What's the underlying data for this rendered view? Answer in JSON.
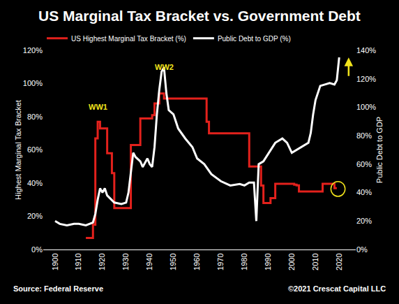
{
  "chart_data": {
    "type": "line",
    "title": "US Marginal Tax Bracket vs. Government Debt",
    "source": "Source: Federal Reserve",
    "credit": "©2021 Crescat Capital LLC",
    "ylabel": "Highest Marginal Tax Bracket",
    "y2label": "Public Debt to GDP",
    "legend": "upper left",
    "grid": false,
    "xlim": [
      1895,
      2027
    ],
    "xticks": [
      1900,
      1910,
      1920,
      1930,
      1940,
      1950,
      1960,
      1970,
      1980,
      1990,
      2000,
      2010,
      2020
    ],
    "ylim": [
      0,
      120
    ],
    "yticks": [
      {
        "value": 0,
        "label": "0%"
      },
      {
        "value": 20,
        "label": "20%"
      },
      {
        "value": 40,
        "label": "40%"
      },
      {
        "value": 60,
        "label": "60%"
      },
      {
        "value": 80,
        "label": "80%"
      },
      {
        "value": 100,
        "label": "100%"
      },
      {
        "value": 120,
        "label": "120%"
      }
    ],
    "y2lim": [
      0,
      140
    ],
    "y2ticks": [
      {
        "value": 0,
        "label": "0%"
      },
      {
        "value": 20,
        "label": "20%"
      },
      {
        "value": 40,
        "label": "40%"
      },
      {
        "value": 60,
        "label": "60%"
      },
      {
        "value": 80,
        "label": "80%"
      },
      {
        "value": 100,
        "label": "100%"
      },
      {
        "value": 120,
        "label": "120%"
      },
      {
        "value": 140,
        "label": "140%"
      }
    ],
    "series": [
      {
        "name": "US Highest Marginal Tax Bracket (%)",
        "color": "#e3211c",
        "line_style": "step",
        "axis": "y",
        "x": [
          1913,
          1916,
          1917,
          1918,
          1919,
          1922,
          1924,
          1925,
          1932,
          1936,
          1941,
          1942,
          1944,
          1946,
          1964,
          1965,
          1982,
          1987,
          1988,
          1991,
          1993,
          2001,
          2002,
          2003,
          2013,
          2018,
          2019
        ],
        "values": [
          7,
          15,
          67,
          77,
          73,
          58,
          46,
          25,
          63,
          79,
          81,
          88,
          94,
          91,
          77,
          70,
          50,
          38.5,
          28,
          31,
          39.6,
          39.1,
          38.6,
          35,
          39.6,
          37,
          37
        ]
      },
      {
        "name": "Public Debt to GDP (%)",
        "color": "#ffffff",
        "line_style": "solid",
        "axis": "y2",
        "x": [
          1900,
          1902,
          1905,
          1908,
          1910,
          1913,
          1916,
          1917,
          1918,
          1919,
          1920,
          1921,
          1922,
          1925,
          1928,
          1930,
          1931,
          1932,
          1933,
          1934,
          1936,
          1937,
          1939,
          1940,
          1941,
          1942,
          1943,
          1944,
          1945,
          1946,
          1947,
          1948,
          1950,
          1952,
          1955,
          1958,
          1960,
          1963,
          1966,
          1970,
          1974,
          1978,
          1980,
          1982,
          1984,
          1985,
          1986,
          1988,
          1990,
          1993,
          1996,
          1998,
          2000,
          2002,
          2005,
          2007,
          2008,
          2009,
          2010,
          2012,
          2014,
          2016,
          2018,
          2019,
          2020
        ],
        "values": [
          20,
          18,
          17,
          18,
          18,
          17,
          19,
          25,
          35,
          43,
          40,
          43,
          38,
          33,
          32,
          33,
          40,
          55,
          68,
          65,
          62,
          58,
          64,
          60,
          58,
          72,
          95,
          112,
          125,
          128,
          110,
          98,
          95,
          85,
          78,
          72,
          64,
          60,
          53,
          48,
          45,
          46,
          45,
          47,
          47,
          20,
          60,
          62,
          67,
          75,
          78,
          75,
          68,
          70,
          73,
          75,
          82,
          95,
          105,
          115,
          116,
          117,
          116,
          119,
          135
        ]
      }
    ],
    "annotations": [
      {
        "text": "WW1",
        "x": 1918,
        "y": 86,
        "color": "#f2e41c"
      },
      {
        "text": "WW2",
        "x": 1946,
        "y": 110,
        "color": "#f2e41c"
      }
    ]
  }
}
